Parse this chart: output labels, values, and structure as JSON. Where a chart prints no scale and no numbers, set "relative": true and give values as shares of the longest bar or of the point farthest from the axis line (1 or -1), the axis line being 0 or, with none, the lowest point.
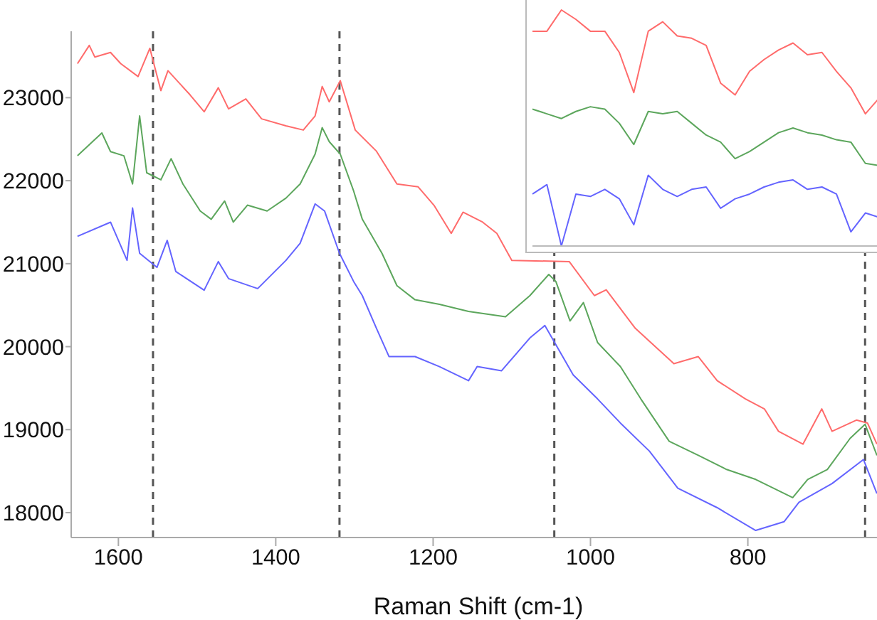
{
  "chart_data": [
    {
      "type": "line",
      "xlabel": "Raman Shift (cm-1)",
      "xlim": [
        1660,
        625
      ],
      "ylim": [
        17700,
        23800
      ],
      "xticks": [
        1600,
        1400,
        1200,
        1000,
        800
      ],
      "yticks": [
        18000,
        19000,
        20000,
        21000,
        22000,
        23000
      ],
      "grid": false,
      "marker": "none",
      "line_style": "solid",
      "ref_lines": [
        {
          "axis": "x",
          "value": 1556,
          "color": "#555555",
          "line_style": "dashed"
        },
        {
          "axis": "x",
          "value": 1319,
          "color": "#555555",
          "line_style": "dashed"
        },
        {
          "axis": "x",
          "value": 1046,
          "color": "#555555",
          "line_style": "dashed"
        },
        {
          "axis": "x",
          "value": 651,
          "color": "#555555",
          "line_style": "dashed"
        }
      ],
      "series": [
        {
          "color": "#ff6b6b",
          "x": [
            1652,
            1637,
            1630,
            1610,
            1597,
            1575,
            1560,
            1546,
            1537,
            1509,
            1491,
            1473,
            1460,
            1438,
            1418,
            1387,
            1365,
            1350,
            1341,
            1332,
            1318,
            1299,
            1272,
            1246,
            1219,
            1199,
            1177,
            1162,
            1137,
            1119,
            1100,
            1027,
            995,
            980,
            943,
            894,
            863,
            839,
            803,
            779,
            761,
            730,
            706,
            693,
            662,
            648,
            636
          ],
          "values": [
            23410,
            23630,
            23490,
            23545,
            23410,
            23255,
            23595,
            23085,
            23325,
            23035,
            22830,
            23120,
            22865,
            22985,
            22745,
            22660,
            22610,
            22780,
            23135,
            22950,
            23205,
            22610,
            22355,
            21960,
            21925,
            21705,
            21365,
            21620,
            21500,
            21365,
            21040,
            21025,
            20615,
            20685,
            20220,
            19795,
            19880,
            19590,
            19370,
            19250,
            18980,
            18825,
            19250,
            18980,
            19115,
            19080,
            18825
          ]
        },
        {
          "color": "#5ca65c",
          "x": [
            1652,
            1621,
            1610,
            1593,
            1582,
            1573,
            1564,
            1546,
            1533,
            1518,
            1496,
            1482,
            1465,
            1454,
            1436,
            1411,
            1387,
            1369,
            1350,
            1341,
            1332,
            1318,
            1301,
            1290,
            1265,
            1246,
            1223,
            1192,
            1155,
            1108,
            1077,
            1053,
            1044,
            1026,
            1009,
            991,
            962,
            936,
            900,
            863,
            827,
            790,
            743,
            724,
            699,
            670,
            651,
            636
          ],
          "values": [
            22300,
            22575,
            22350,
            22300,
            21960,
            22780,
            22095,
            22010,
            22265,
            21960,
            21635,
            21535,
            21755,
            21500,
            21705,
            21635,
            21790,
            21960,
            22320,
            22640,
            22470,
            22320,
            21875,
            21535,
            21125,
            20735,
            20565,
            20510,
            20425,
            20360,
            20615,
            20870,
            20785,
            20310,
            20530,
            20050,
            19760,
            19370,
            18860,
            18690,
            18520,
            18400,
            18180,
            18400,
            18520,
            18895,
            19065,
            18690
          ]
        },
        {
          "color": "#6464ff",
          "x": [
            1652,
            1610,
            1589,
            1582,
            1573,
            1551,
            1538,
            1527,
            1491,
            1473,
            1460,
            1423,
            1387,
            1369,
            1350,
            1338,
            1319,
            1301,
            1290,
            1272,
            1256,
            1223,
            1192,
            1155,
            1144,
            1113,
            1077,
            1058,
            1022,
            991,
            962,
            925,
            889,
            839,
            790,
            754,
            735,
            693,
            653,
            636
          ],
          "values": [
            21330,
            21500,
            21040,
            21670,
            21125,
            20955,
            21280,
            20905,
            20680,
            21025,
            20820,
            20700,
            21040,
            21245,
            21720,
            21635,
            21125,
            20785,
            20615,
            20220,
            19880,
            19880,
            19760,
            19590,
            19760,
            19710,
            20105,
            20255,
            19660,
            19370,
            19080,
            18740,
            18295,
            18060,
            17785,
            17890,
            18125,
            18350,
            18640,
            18230
          ]
        }
      ]
    },
    {
      "type": "line",
      "relative": true,
      "grid": false,
      "marker": "none",
      "line_style": "solid",
      "categories": [
        null,
        null,
        null,
        null,
        null,
        null,
        null,
        null,
        null,
        null,
        null,
        null,
        null,
        null,
        null,
        null,
        null,
        null,
        null,
        null,
        null,
        null,
        null,
        null,
        null
      ],
      "series": [
        {
          "color": "#ff6b6b",
          "values": [
            0.91,
            0.91,
            1,
            0.96,
            0.91,
            0.91,
            0.82,
            0.65,
            0.91,
            0.95,
            0.89,
            0.88,
            0.85,
            0.69,
            0.64,
            0.74,
            0.79,
            0.83,
            0.86,
            0.81,
            0.82,
            0.74,
            0.67,
            0.56,
            0.63
          ]
        },
        {
          "color": "#5ca65c",
          "values": [
            0.58,
            0.56,
            0.54,
            0.57,
            0.59,
            0.58,
            0.52,
            0.43,
            0.57,
            0.56,
            0.57,
            0.52,
            0.47,
            0.44,
            0.37,
            0.4,
            0.44,
            0.48,
            0.5,
            0.48,
            0.47,
            0.45,
            0.44,
            0.35,
            0.34
          ]
        },
        {
          "color": "#6464ff",
          "values": [
            0.22,
            0.26,
            0,
            0.22,
            0.21,
            0.24,
            0.2,
            0.09,
            0.3,
            0.24,
            0.21,
            0.24,
            0.25,
            0.16,
            0.2,
            0.22,
            0.25,
            0.27,
            0.28,
            0.24,
            0.25,
            0.22,
            0.06,
            0.14,
            0.12
          ]
        }
      ]
    }
  ]
}
